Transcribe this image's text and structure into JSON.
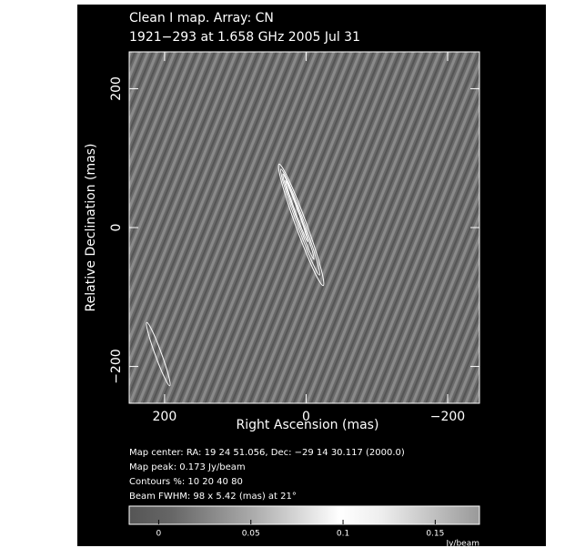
{
  "chart_data": {
    "type": "image",
    "title": "Clean I map.  Array:  CN",
    "subtitle": "1921−293 at 1.658 GHz 2005 Jul 31",
    "xlabel": "Right Ascension  (mas)",
    "ylabel": "Relative Declination  (mas)",
    "xlim": [
      250,
      -245
    ],
    "ylim": [
      -253,
      253
    ],
    "xticks": [
      200,
      0,
      {
        "value": -200,
        "label": "−200"
      }
    ],
    "yticks": [
      {
        "value": -200,
        "label": "−200"
      },
      0,
      200
    ],
    "notes": [
      "Map center:  RA: 19 24 51.056,  Dec: −29 14 30.117 (2000.0)",
      "Map peak: 0.173 Jy/beam",
      "Contours %: 10 20 40 80",
      "Beam FWHM: 98 x 5.42 (mas) at 21°"
    ],
    "colorbar": {
      "lim": [
        -0.016,
        0.174
      ],
      "ticks": [
        0,
        0.05,
        0.1,
        0.15
      ],
      "label": "Jy/beam"
    }
  }
}
